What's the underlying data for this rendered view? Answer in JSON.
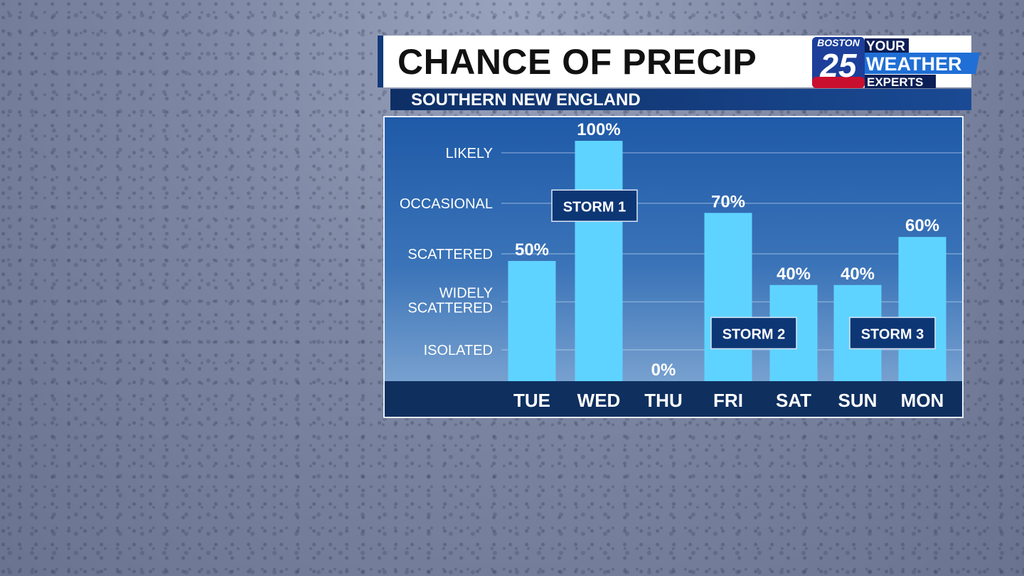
{
  "header": {
    "title": "CHANCE OF PRECIP",
    "subtitle": "SOUTHERN NEW ENGLAND"
  },
  "logo": {
    "station": "BOSTON",
    "number": "25",
    "tagline": [
      "YOUR",
      "WEATHER",
      "EXPERTS"
    ]
  },
  "colors": {
    "bar": "#5fd3ff",
    "axis_band": "#0f2f5f",
    "storm_box": "#0d3675",
    "logo_red": "#c8102e"
  },
  "chart_data": {
    "type": "bar",
    "title": "CHANCE OF PRECIP",
    "categories": [
      "TUE",
      "WED",
      "THU",
      "FRI",
      "SAT",
      "SUN",
      "MON"
    ],
    "values": [
      50,
      100,
      0,
      70,
      40,
      40,
      60
    ],
    "value_labels": [
      "50%",
      "100%",
      "0%",
      "70%",
      "40%",
      "40%",
      "60%"
    ],
    "ylim": [
      0,
      100
    ],
    "yticks": [
      {
        "label": "ISOLATED",
        "value": 13
      },
      {
        "label": "WIDELY SCATTERED",
        "value": 33
      },
      {
        "label": "SCATTERED",
        "value": 53
      },
      {
        "label": "OCCASIONAL",
        "value": 74
      },
      {
        "label": "LIKELY",
        "value": 95
      }
    ],
    "grid": true,
    "annotations": [
      {
        "text": "STORM 1",
        "category": "WED",
        "value": 73
      },
      {
        "text": "STORM 2",
        "category": "FRI",
        "value": 20
      },
      {
        "text": "STORM 3",
        "category": "SUN",
        "value": 20
      }
    ]
  }
}
